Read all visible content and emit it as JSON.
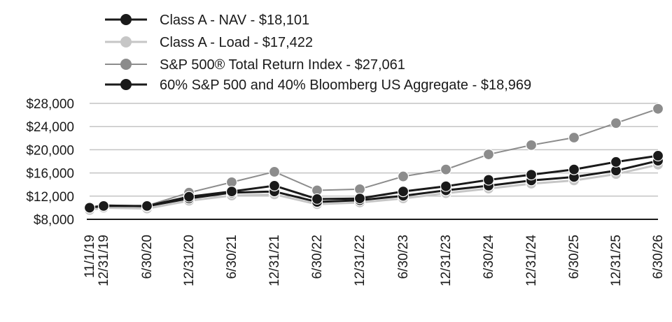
{
  "chart_data": {
    "type": "line",
    "title": "",
    "xlabel": "",
    "ylabel": "",
    "ylim": [
      8000,
      28000
    ],
    "y_ticks": [
      "$8,000",
      "$12,000",
      "$16,000",
      "$20,000",
      "$24,000",
      "$28,000"
    ],
    "y_tick_values": [
      8000,
      12000,
      16000,
      20000,
      24000,
      28000
    ],
    "x_ticks": [
      "11/1/19",
      "12/31/19",
      "6/30/20",
      "12/31/20",
      "6/30/21",
      "12/31/21",
      "6/30/22",
      "12/31/22",
      "6/30/23",
      "12/31/23",
      "6/30/24",
      "12/31/24",
      "6/30/25",
      "12/31/25",
      "6/30/26"
    ],
    "grid": true,
    "legend_position": "top-left",
    "series": [
      {
        "name": "Class A - NAV - $18,101",
        "color": "#1a1a1a",
        "marker_color": "#1a1a1a",
        "line_width": 3,
        "values": [
          10000,
          10400,
          10250,
          11600,
          12600,
          12800,
          11000,
          11300,
          12050,
          13000,
          13800,
          14700,
          15300,
          16400,
          18101
        ]
      },
      {
        "name": "Class A - Load - $17,422",
        "color": "#c6c6c6",
        "marker_color": "#c6c6c6",
        "line_width": 3,
        "values": [
          9600,
          10000,
          9850,
          11200,
          12100,
          12300,
          10600,
          10900,
          11600,
          12500,
          13300,
          14150,
          14700,
          15800,
          17422
        ]
      },
      {
        "name": "S&P 500® Total Return Index - $27,061",
        "color": "#8c8c8c",
        "marker_color": "#8c8c8c",
        "line_width": 2,
        "values": [
          10000,
          10400,
          10350,
          12600,
          14400,
          16200,
          13000,
          13200,
          15400,
          16600,
          19200,
          20800,
          22100,
          24600,
          27061
        ]
      },
      {
        "name": "60% S&P 500 and 40% Bloomberg US Aggregate - $18,969",
        "color": "#1a1a1a",
        "marker_color": "#1a1a1a",
        "line_width": 3,
        "values": [
          10000,
          10300,
          10300,
          11900,
          12800,
          13800,
          11500,
          11600,
          12800,
          13700,
          14800,
          15700,
          16600,
          17900,
          18969
        ]
      }
    ]
  }
}
